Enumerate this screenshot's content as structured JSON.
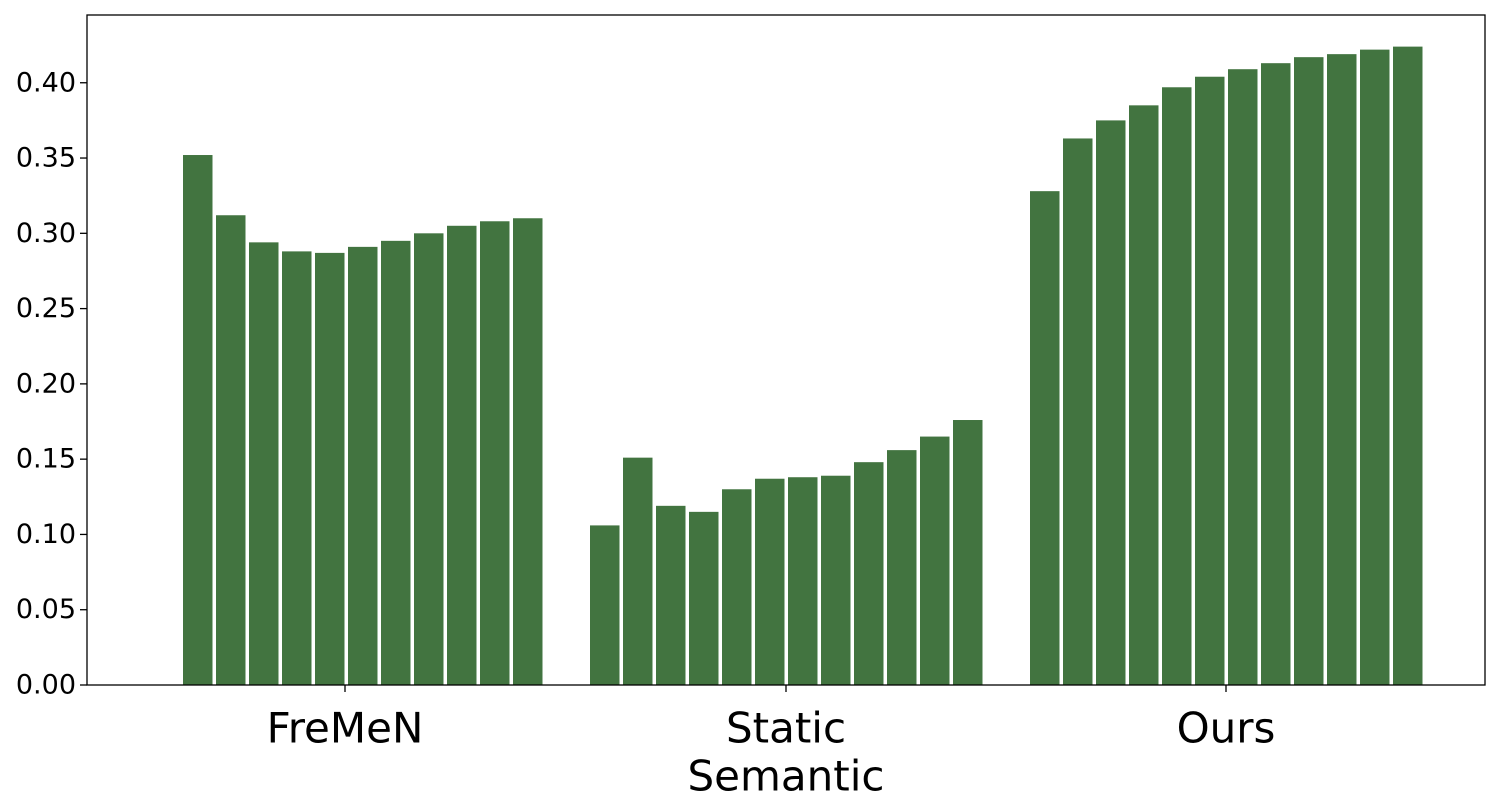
{
  "chart_data": {
    "type": "bar",
    "title": "",
    "xlabel": "",
    "ylabel": "",
    "ylim": [
      0,
      0.445
    ],
    "yticks": [
      "0.00",
      "0.05",
      "0.10",
      "0.15",
      "0.20",
      "0.25",
      "0.30",
      "0.35",
      "0.40"
    ],
    "grid": false,
    "bar_color": "#427440",
    "groups": [
      {
        "label_lines": [
          "FreMeN"
        ],
        "values": [
          0.352,
          0.312,
          0.294,
          0.288,
          0.287,
          0.291,
          0.295,
          0.3,
          0.305,
          0.308,
          0.31
        ]
      },
      {
        "label_lines": [
          "Static",
          "Semantic"
        ],
        "values": [
          0.106,
          0.151,
          0.119,
          0.115,
          0.13,
          0.137,
          0.138,
          0.139,
          0.148,
          0.156,
          0.165,
          0.176
        ]
      },
      {
        "label_lines": [
          "Ours"
        ],
        "values": [
          0.328,
          0.363,
          0.375,
          0.385,
          0.397,
          0.404,
          0.409,
          0.413,
          0.417,
          0.419,
          0.422,
          0.424
        ]
      }
    ]
  }
}
